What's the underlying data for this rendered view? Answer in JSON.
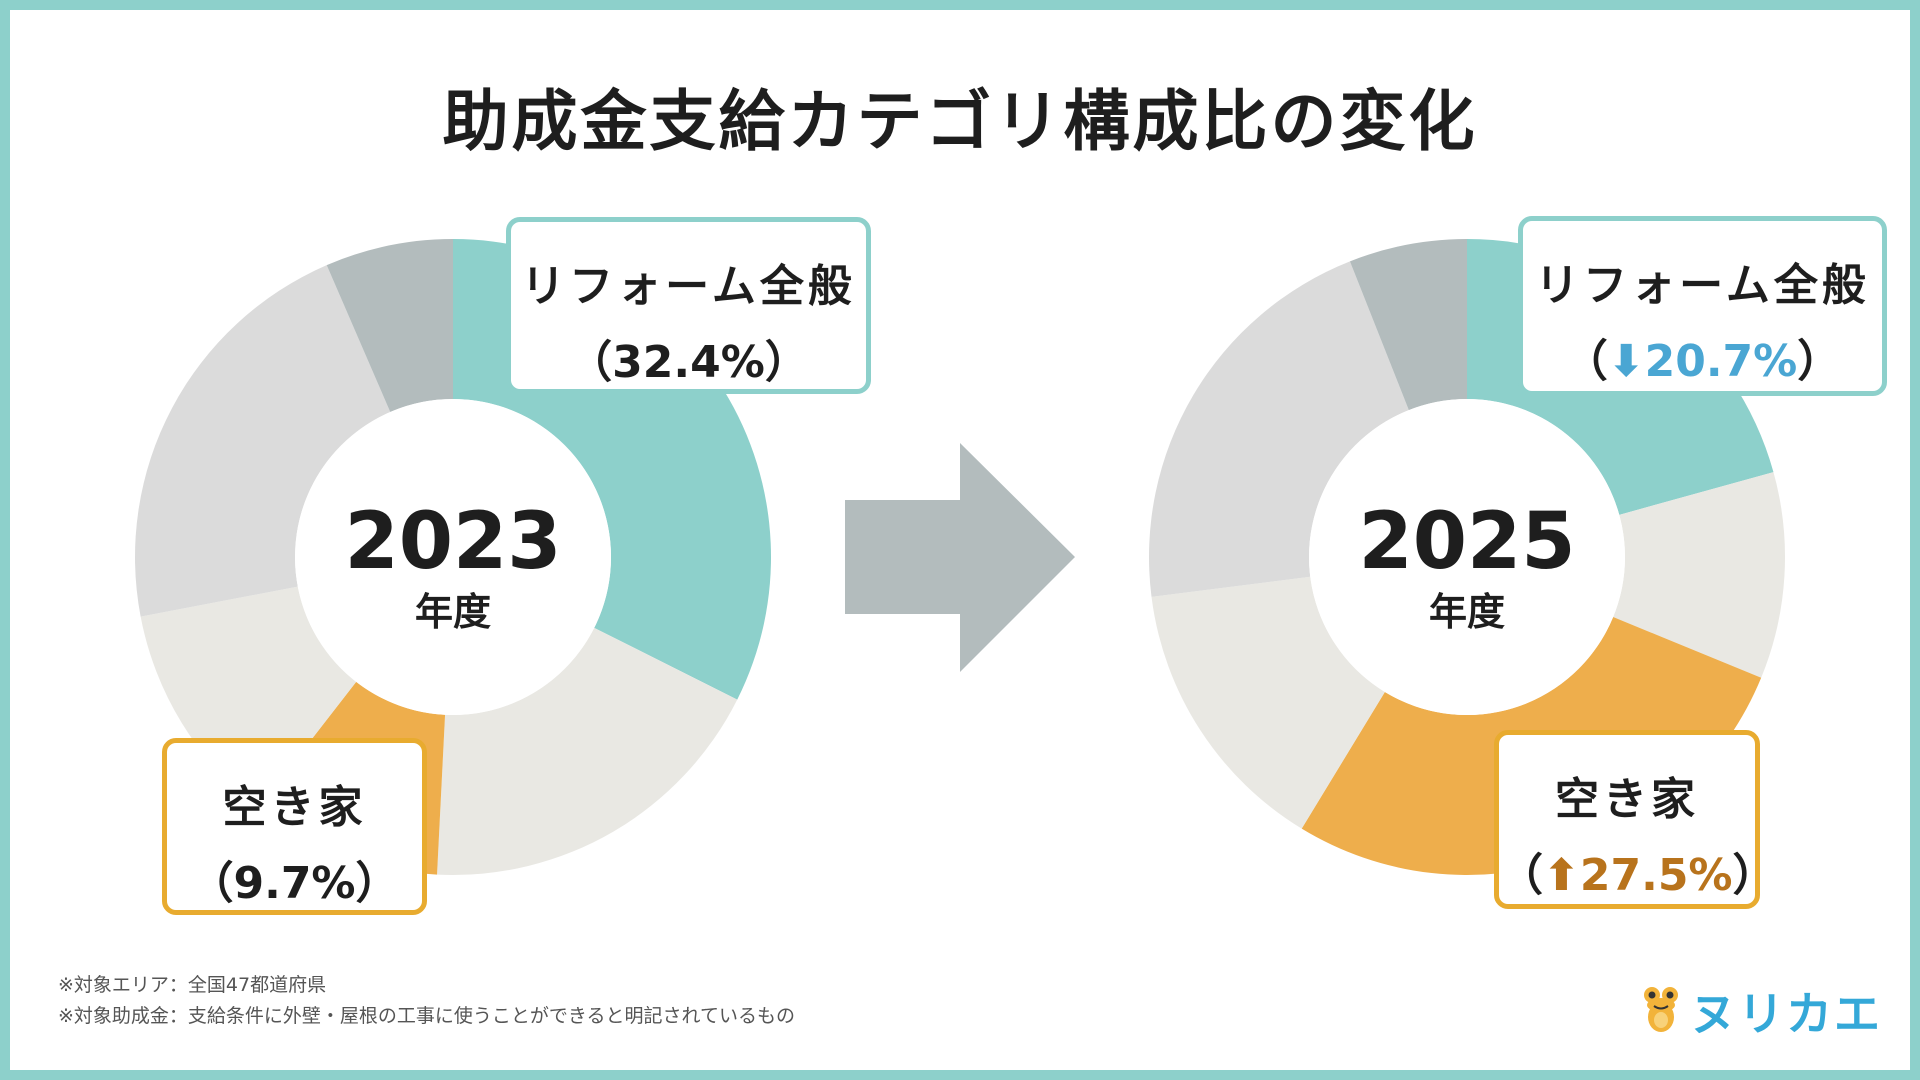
{
  "title": "助成金支給カテゴリ構成比の変化",
  "colors": {
    "frame": "#8dd0cb",
    "reform": "#8dd0cb",
    "akiya": "#eeae4c",
    "other_light": "#e9e8e3",
    "other_mid": "#dbdbdb",
    "other_dark": "#b3bcbd",
    "arrow": "#b3bcbd",
    "down_text": "#4aa6d3",
    "up_text": "#b8731c"
  },
  "chart_data": [
    {
      "type": "pie",
      "donut": true,
      "center_value": "2023",
      "center_label": "年度",
      "slices": [
        {
          "label": "リフォーム全般",
          "value": 32.4,
          "color": "#8dd0cb"
        },
        {
          "label": "",
          "value": 18.4,
          "color": "#e9e8e3"
        },
        {
          "label": "空き家",
          "value": 9.7,
          "color": "#eeae4c"
        },
        {
          "label": "",
          "value": 11.5,
          "color": "#e9e8e3"
        },
        {
          "label": "",
          "value": 21.5,
          "color": "#dbdbdb"
        },
        {
          "label": "",
          "value": 6.5,
          "color": "#b3bcbd"
        }
      ],
      "callouts": {
        "reform": {
          "name": "リフォーム全般",
          "open": "（",
          "value": "32.4%",
          "close": "）"
        },
        "akiya": {
          "name": "空き家",
          "open": "（",
          "value": "9.7%",
          "close": "）"
        }
      }
    },
    {
      "type": "pie",
      "donut": true,
      "center_value": "2025",
      "center_label": "年度",
      "slices": [
        {
          "label": "リフォーム全般",
          "value": 20.7,
          "color": "#8dd0cb"
        },
        {
          "label": "",
          "value": 10.5,
          "color": "#e9e8e3"
        },
        {
          "label": "空き家",
          "value": 27.5,
          "color": "#eeae4c"
        },
        {
          "label": "",
          "value": 14.3,
          "color": "#e9e8e3"
        },
        {
          "label": "",
          "value": 21.0,
          "color": "#dbdbdb"
        },
        {
          "label": "",
          "value": 6.0,
          "color": "#b3bcbd"
        }
      ],
      "callouts": {
        "reform": {
          "name": "リフォーム全般",
          "open": "（",
          "arrow": "⬇",
          "value": "20.7%",
          "close": "）"
        },
        "akiya": {
          "name": "空き家",
          "open": "（",
          "arrow": "⬆",
          "value": "27.5%",
          "close": "）"
        }
      }
    }
  ],
  "notes": [
    "※対象エリア：全国47都道府県",
    "※対象助成金：支給条件に外壁・屋根の工事に使うことができると明記されているもの"
  ],
  "logo": {
    "text": "ヌリカエ",
    "icon": "frog-mascot-icon"
  }
}
